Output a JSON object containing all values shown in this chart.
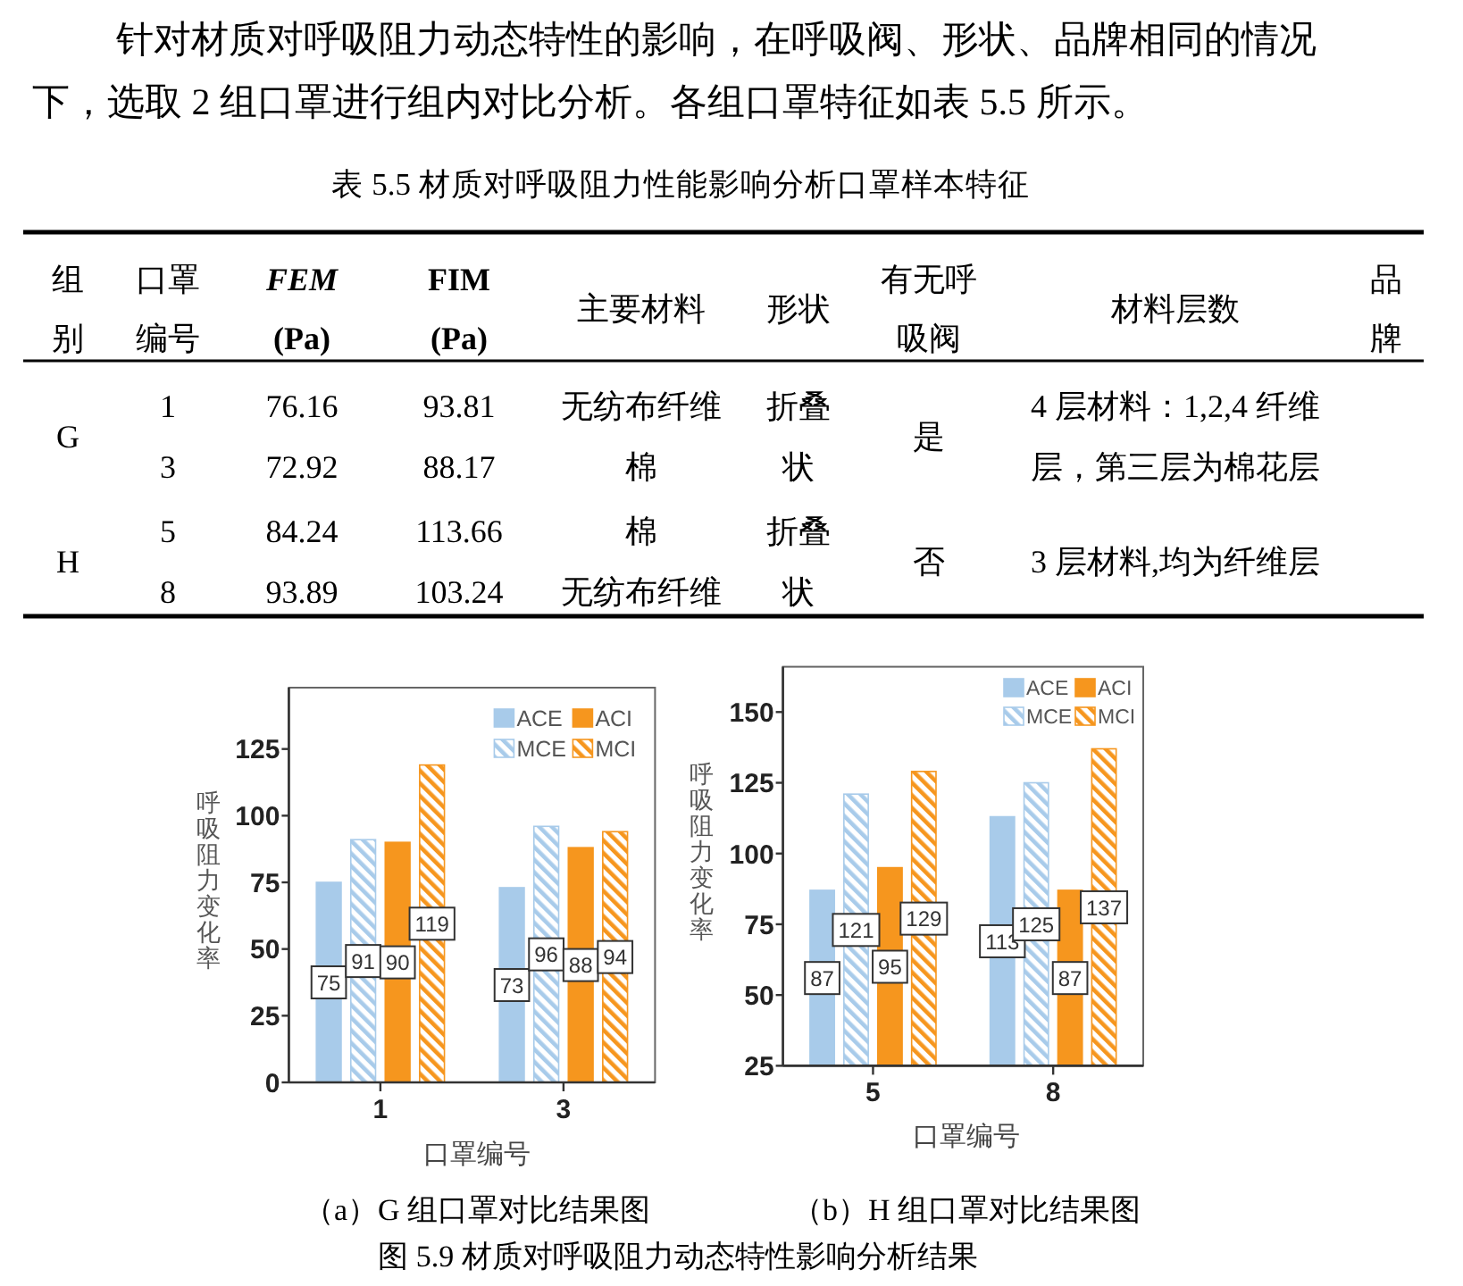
{
  "chart_data": [
    {
      "type": "other",
      "annotations": [
        "针对材质对呼吸阻力动态特性的影响，在呼吸阀、形状、品牌相同的情况下，选取 2 组口罩进行组内对比分析。各组口罩特征如表 5.5 所示。"
      ]
    },
    {
      "type": "other",
      "title": "表 5.5 材质对呼吸阻力性能影响分析口罩样本特征",
      "categories": [
        "组别",
        "口罩编号",
        "FEM (Pa)",
        "FIM (Pa)",
        "主要材料",
        "形状",
        "有无呼吸阀",
        "材料层数",
        "品牌"
      ],
      "annotations": [
        "G",
        "1",
        "76.16",
        "93.81",
        "无纺布纤维",
        "折叠状",
        "是",
        "4 层材料：1,2,4 纤维层，第三层为棉花层",
        "3",
        "72.92",
        "88.17",
        "棉",
        "H",
        "5",
        "84.24",
        "113.66",
        "棉",
        "折叠状",
        "否",
        "3 层材料,均为纤维层",
        "8",
        "93.89",
        "103.24",
        "无纺布纤维"
      ]
    },
    {
      "type": "bar",
      "categories": [
        "1",
        "3"
      ],
      "xlabel": "口罩编号",
      "ylabel": "呼吸阻力变化率",
      "ylim": [
        0,
        148
      ],
      "yticks": [
        0,
        25,
        50,
        75,
        100,
        125
      ],
      "legend": "top right",
      "data_labels": true,
      "series": [
        {
          "name": "ACE",
          "color": "#a8cbea",
          "values": [
            75,
            73
          ]
        },
        {
          "name": "MCE",
          "color": "#a8cbea",
          "values": [
            91,
            96
          ]
        },
        {
          "name": "ACI",
          "color": "#f6961e",
          "values": [
            90,
            88
          ]
        },
        {
          "name": "MCI",
          "color": "#f6961e",
          "values": [
            119,
            94
          ]
        }
      ],
      "annotations": [
        "（a）G 组口罩对比结果图"
      ]
    },
    {
      "type": "bar",
      "categories": [
        "5",
        "8"
      ],
      "xlabel": "口罩编号",
      "ylabel": "呼吸阻力变化率",
      "ylim": [
        25,
        166
      ],
      "yticks": [
        25,
        50,
        75,
        100,
        125,
        150
      ],
      "legend": "top right",
      "data_labels": true,
      "series": [
        {
          "name": "ACE",
          "color": "#a8cbea",
          "values": [
            87,
            113
          ]
        },
        {
          "name": "MCE",
          "color": "#a8cbea",
          "values": [
            121,
            125
          ]
        },
        {
          "name": "ACI",
          "color": "#f6961e",
          "values": [
            95,
            87
          ]
        },
        {
          "name": "MCI",
          "color": "#f6961e",
          "values": [
            129,
            137
          ]
        }
      ],
      "annotations": [
        "（b）H 组口罩对比结果图",
        "图 5.9 材质对呼吸阻力动态特性影响分析结果"
      ]
    }
  ]
}
